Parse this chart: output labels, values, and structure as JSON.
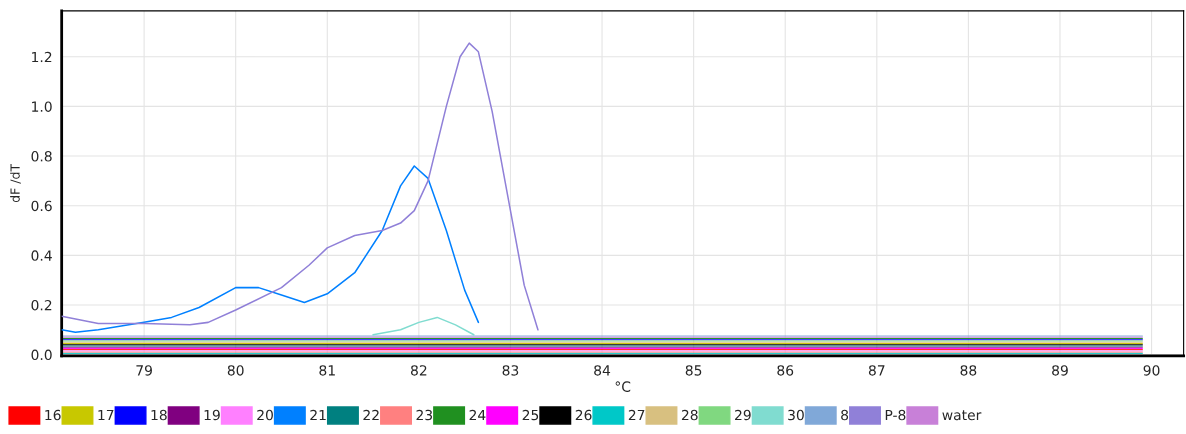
{
  "chart_data": {
    "type": "line",
    "xlabel": "°C",
    "ylabel": "dF /dT",
    "xlim": [
      78.1,
      90.35
    ],
    "ylim": [
      -0.005,
      1.385
    ],
    "xticks": [
      79,
      80,
      81,
      82,
      83,
      84,
      85,
      86,
      87,
      88,
      89,
      90
    ],
    "yticks": [
      {
        "value": 0,
        "label": "0.0"
      },
      0.2,
      0.4,
      0.6,
      0.8,
      {
        "value": 1,
        "label": "1.0"
      },
      1.2
    ],
    "grid": true,
    "legend": "bottom",
    "line_style": "solid",
    "marker": "none",
    "series": [
      {
        "name": "16",
        "color": "#ff0000",
        "x": [
          78.1,
          89.9
        ],
        "values": [
          0.02,
          0.02
        ]
      },
      {
        "name": "17",
        "color": "#c8c800",
        "x": [
          78.1,
          89.9
        ],
        "values": [
          0.045,
          0.045
        ]
      },
      {
        "name": "18",
        "color": "#0000ff",
        "x": [
          78.1,
          89.9
        ],
        "values": [
          0.06,
          0.06
        ]
      },
      {
        "name": "19",
        "color": "#800080",
        "x": [
          78.1,
          89.9
        ],
        "values": [
          0.03,
          0.03
        ]
      },
      {
        "name": "20",
        "color": "#ff80ff",
        "x": [
          78.1,
          89.9
        ],
        "values": [
          0.015,
          0.015
        ]
      },
      {
        "name": "21",
        "color": "#0080ff",
        "x": [
          78.1,
          78.25,
          78.5,
          79,
          79.3,
          79.6,
          80,
          80.25,
          80.5,
          80.75,
          81,
          81.3,
          81.6,
          81.8,
          81.95,
          82.1,
          82.3,
          82.5,
          82.65
        ],
        "values": [
          0.1,
          0.09,
          0.1,
          0.13,
          0.15,
          0.19,
          0.27,
          0.27,
          0.24,
          0.21,
          0.245,
          0.33,
          0.5,
          0.68,
          0.76,
          0.71,
          0.5,
          0.26,
          0.13
        ]
      },
      {
        "name": "22",
        "color": "#008080",
        "x": [
          78.1,
          89.9
        ],
        "values": [
          0.035,
          0.035
        ]
      },
      {
        "name": "23",
        "color": "#ff8080",
        "x": [
          78.1,
          89.9
        ],
        "values": [
          0.01,
          0.01
        ]
      },
      {
        "name": "24",
        "color": "#209020",
        "x": [
          78.1,
          89.9
        ],
        "values": [
          0.065,
          0.065
        ]
      },
      {
        "name": "25",
        "color": "#ff00ff",
        "x": [
          78.1,
          89.9
        ],
        "values": [
          0.025,
          0.025
        ]
      },
      {
        "name": "26",
        "color": "#000000",
        "x": [
          78.1,
          89.9
        ],
        "values": [
          0.04,
          0.04
        ]
      },
      {
        "name": "27",
        "color": "#00c8c8",
        "x": [
          78.1,
          89.9
        ],
        "values": [
          0.005,
          0.005
        ]
      },
      {
        "name": "28",
        "color": "#d8c080",
        "x": [
          78.1,
          89.9
        ],
        "values": [
          0.05,
          0.05
        ]
      },
      {
        "name": "29",
        "color": "#80d880",
        "x": [
          78.1,
          89.9
        ],
        "values": [
          0.055,
          0.055
        ]
      },
      {
        "name": "30",
        "color": "#80dcd0",
        "x": [
          81.5,
          81.8,
          82.0,
          82.2,
          82.4,
          82.6
        ],
        "values": [
          0.08,
          0.1,
          0.13,
          0.15,
          0.12,
          0.08
        ]
      },
      {
        "name": "8",
        "color": "#80a8d8",
        "x": [
          78.1,
          89.9
        ],
        "values": [
          0.075,
          0.075
        ]
      },
      {
        "name": "P-8",
        "color": "#9080d8",
        "x": [
          78.1,
          78.5,
          79,
          79.5,
          79.7,
          80,
          80.5,
          80.8,
          81,
          81.3,
          81.6,
          81.8,
          81.95,
          82.1,
          82.3,
          82.45,
          82.55,
          82.65,
          82.8,
          83.0,
          83.15,
          83.3
        ],
        "values": [
          0.155,
          0.125,
          0.125,
          0.12,
          0.13,
          0.18,
          0.27,
          0.36,
          0.43,
          0.48,
          0.5,
          0.53,
          0.58,
          0.7,
          1.0,
          1.2,
          1.255,
          1.22,
          0.98,
          0.58,
          0.28,
          0.1
        ]
      },
      {
        "name": "water",
        "color": "#c880d8",
        "x": [
          78.1,
          89.9
        ],
        "values": [
          0.07,
          0.07
        ]
      }
    ]
  }
}
